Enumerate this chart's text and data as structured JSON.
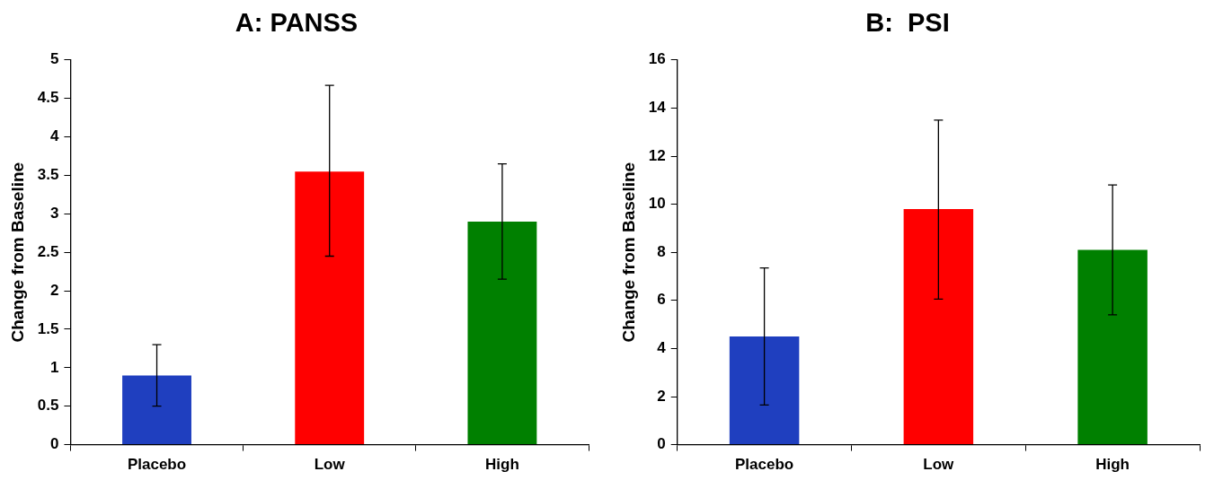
{
  "chart_data": [
    {
      "type": "bar",
      "title": "A: PANSS",
      "ylabel": "Change from Baseline",
      "categories": [
        "Placebo",
        "Low",
        "High"
      ],
      "values": [
        0.9,
        3.55,
        2.9
      ],
      "colors": [
        "#1f3fbf",
        "#ff0000",
        "#008000"
      ],
      "errors": [
        [
          0.5,
          1.3
        ],
        [
          2.45,
          4.67
        ],
        [
          2.15,
          3.65
        ]
      ],
      "ylim": [
        0,
        5
      ],
      "yticks": [
        0,
        0.5,
        1,
        1.5,
        2,
        2.5,
        3,
        3.5,
        4,
        4.5,
        5
      ]
    },
    {
      "type": "bar",
      "title": "B:  PSI",
      "ylabel": "Change from Baseline",
      "categories": [
        "Placebo",
        "Low",
        "High"
      ],
      "values": [
        4.5,
        9.8,
        8.1
      ],
      "colors": [
        "#1f3fbf",
        "#ff0000",
        "#008000"
      ],
      "errors": [
        [
          1.65,
          7.35
        ],
        [
          6.05,
          13.5
        ],
        [
          5.4,
          10.8
        ]
      ],
      "ylim": [
        0,
        16
      ],
      "yticks": [
        0,
        2,
        4,
        6,
        8,
        10,
        12,
        14,
        16
      ]
    }
  ]
}
